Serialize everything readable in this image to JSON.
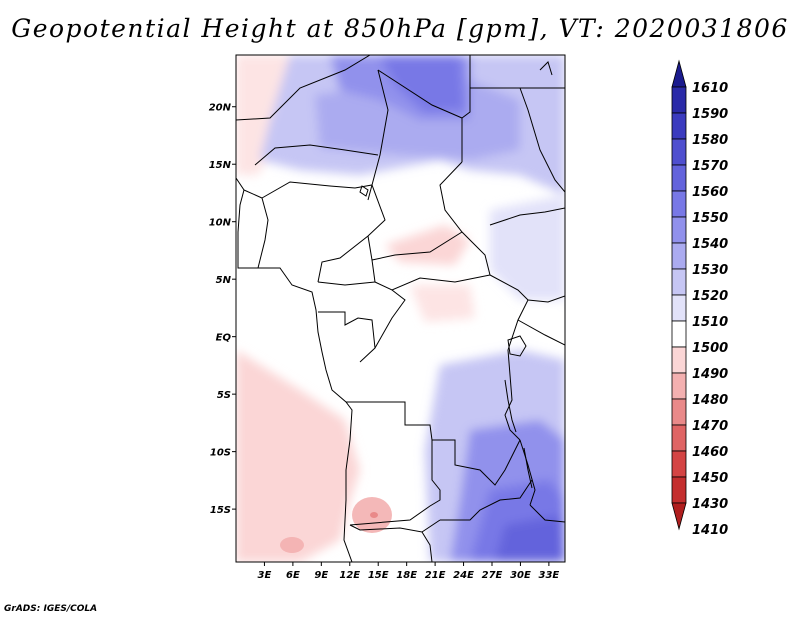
{
  "title": "Geopotential Height at 850hPa [gpm], VT: 2020031806",
  "credit": "GrADS: IGES/COLA",
  "map": {
    "variable": "Geopotential Height",
    "level": "850hPa",
    "units": "gpm",
    "valid_time": "2020031806",
    "lon_ticks": [
      "3E",
      "6E",
      "9E",
      "12E",
      "15E",
      "18E",
      "21E",
      "24E",
      "27E",
      "30E",
      "33E"
    ],
    "lat_ticks": [
      "20N",
      "15N",
      "10N",
      "5N",
      "EQ",
      "5S",
      "10S",
      "15S"
    ]
  },
  "colorbar": {
    "labels": [
      "1610",
      "1590",
      "1580",
      "1570",
      "1560",
      "1550",
      "1540",
      "1530",
      "1520",
      "1510",
      "1500",
      "1490",
      "1480",
      "1470",
      "1460",
      "1450",
      "1430",
      "1410"
    ],
    "colors": [
      "#1b1b8e",
      "#2a2aa8",
      "#3b3bbf",
      "#4f4fcf",
      "#6363dc",
      "#7878e6",
      "#9191ec",
      "#ababf0",
      "#c6c6f4",
      "#e2e2f9",
      "#ffffff",
      "#fbd6d6",
      "#f3b0b0",
      "#e98989",
      "#df6464",
      "#d44444",
      "#c42e2e",
      "#b01e1e"
    ]
  }
}
